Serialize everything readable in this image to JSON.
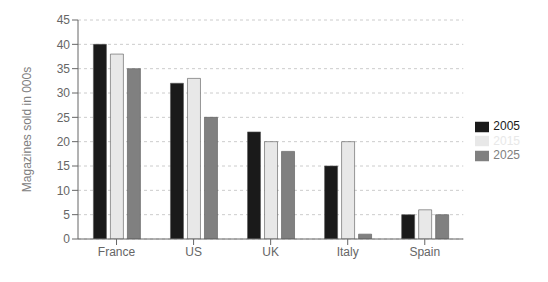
{
  "chart_data": {
    "type": "bar",
    "categories": [
      "France",
      "US",
      "UK",
      "Italy",
      "Spain"
    ],
    "series": [
      {
        "name": "2005",
        "color": "#1a1a1a",
        "values": [
          40,
          32,
          22,
          15,
          5
        ]
      },
      {
        "name": "2015",
        "color": "#e8e8e8",
        "values": [
          38,
          33,
          20,
          20,
          6
        ]
      },
      {
        "name": "2025",
        "color": "#808080",
        "values": [
          35,
          25,
          18,
          1,
          5
        ]
      }
    ],
    "ylabel": "Magazines sold in 000s",
    "ylim": [
      0,
      45
    ],
    "yticks": [
      0,
      5,
      10,
      15,
      20,
      25,
      30,
      35,
      40,
      45
    ],
    "grid": true,
    "legend": "right"
  }
}
